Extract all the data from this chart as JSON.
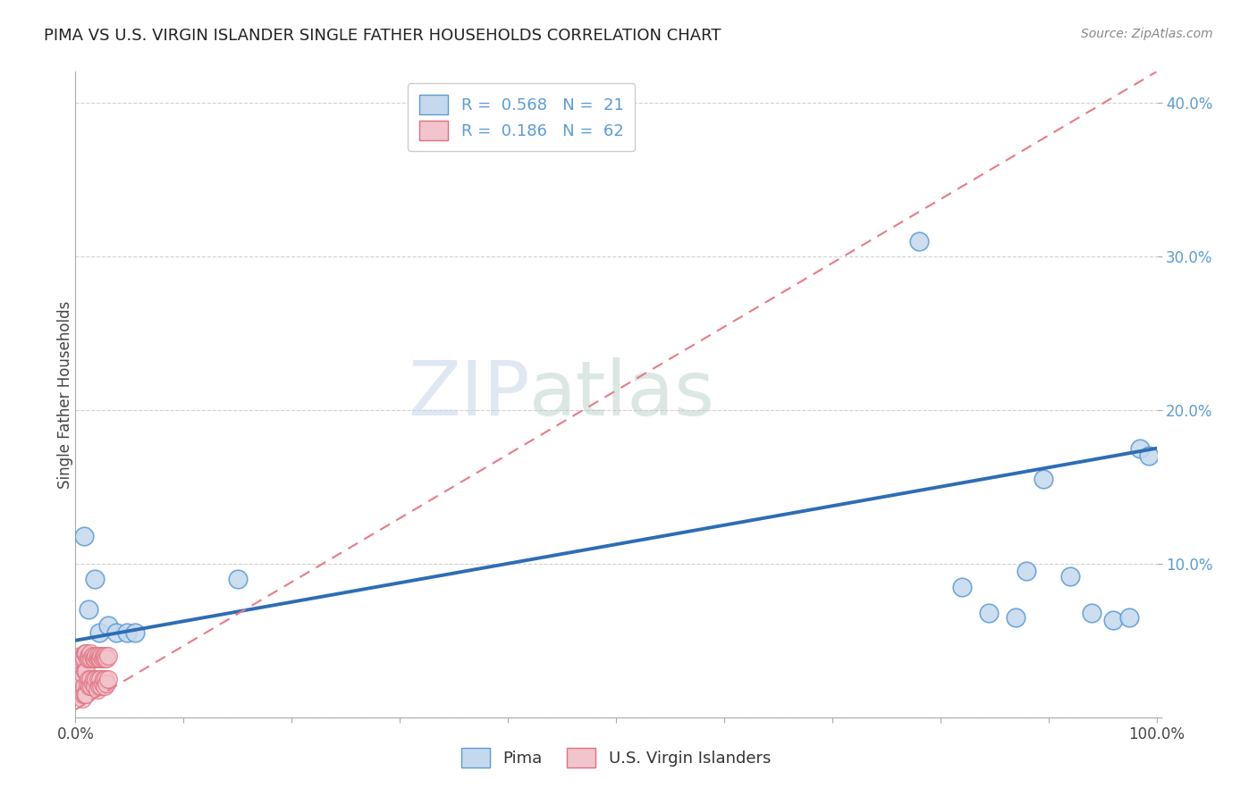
{
  "title": "PIMA VS U.S. VIRGIN ISLANDER SINGLE FATHER HOUSEHOLDS CORRELATION CHART",
  "source": "Source: ZipAtlas.com",
  "ylabel": "Single Father Households",
  "xlim": [
    0,
    1.0
  ],
  "ylim": [
    0,
    0.42
  ],
  "xticks": [
    0.0,
    0.1,
    0.2,
    0.3,
    0.4,
    0.5,
    0.6,
    0.7,
    0.8,
    0.9,
    1.0
  ],
  "yticks": [
    0.0,
    0.1,
    0.2,
    0.3,
    0.4
  ],
  "pima_R": 0.568,
  "pima_N": 21,
  "vi_R": 0.186,
  "vi_N": 62,
  "watermark_zip": "ZIP",
  "watermark_atlas": "atlas",
  "pima_color": "#c5d9ee",
  "pima_edge_color": "#5b9bd5",
  "vi_color": "#f2c4cc",
  "vi_edge_color": "#e07080",
  "pima_line_color": "#2e6db4",
  "vi_line_color": "#e87a8a",
  "grid_color": "#cccccc",
  "tick_color": "#5b9bd5",
  "background_color": "#ffffff",
  "pima_x": [
    0.008,
    0.012,
    0.018,
    0.022,
    0.03,
    0.038,
    0.048,
    0.055,
    0.15,
    0.78,
    0.82,
    0.845,
    0.87,
    0.88,
    0.895,
    0.92,
    0.94,
    0.96,
    0.975,
    0.985,
    0.993
  ],
  "pima_y": [
    0.118,
    0.07,
    0.09,
    0.055,
    0.06,
    0.055,
    0.055,
    0.055,
    0.09,
    0.31,
    0.085,
    0.068,
    0.065,
    0.095,
    0.155,
    0.092,
    0.068,
    0.063,
    0.065,
    0.175,
    0.17
  ],
  "vi_x": [
    0.002,
    0.003,
    0.003,
    0.004,
    0.004,
    0.005,
    0.005,
    0.005,
    0.006,
    0.006,
    0.006,
    0.007,
    0.007,
    0.007,
    0.008,
    0.008,
    0.009,
    0.009,
    0.009,
    0.01,
    0.01,
    0.01,
    0.011,
    0.011,
    0.012,
    0.012,
    0.013,
    0.013,
    0.014,
    0.014,
    0.015,
    0.015,
    0.016,
    0.016,
    0.017,
    0.017,
    0.018,
    0.018,
    0.019,
    0.019,
    0.02,
    0.02,
    0.021,
    0.021,
    0.022,
    0.022,
    0.023,
    0.023,
    0.024,
    0.024,
    0.025,
    0.025,
    0.026,
    0.026,
    0.027,
    0.027,
    0.028,
    0.028,
    0.029,
    0.029,
    0.03,
    0.03
  ],
  "vi_y": [
    0.038,
    0.028,
    0.018,
    0.035,
    0.022,
    0.04,
    0.028,
    0.015,
    0.038,
    0.025,
    0.012,
    0.04,
    0.028,
    0.015,
    0.038,
    0.02,
    0.042,
    0.03,
    0.015,
    0.042,
    0.03,
    0.015,
    0.038,
    0.022,
    0.04,
    0.025,
    0.038,
    0.02,
    0.042,
    0.025,
    0.038,
    0.02,
    0.04,
    0.022,
    0.038,
    0.025,
    0.038,
    0.02,
    0.04,
    0.025,
    0.038,
    0.018,
    0.04,
    0.025,
    0.038,
    0.02,
    0.038,
    0.025,
    0.04,
    0.02,
    0.038,
    0.022,
    0.04,
    0.025,
    0.038,
    0.02,
    0.04,
    0.025,
    0.038,
    0.022,
    0.04,
    0.025
  ],
  "pima_line_x0": 0.0,
  "pima_line_x1": 1.0,
  "pima_line_y0": 0.05,
  "pima_line_y1": 0.175,
  "vi_line_x0": 0.0,
  "vi_line_x1": 1.0,
  "vi_line_y0": 0.005,
  "vi_line_y1": 0.42
}
